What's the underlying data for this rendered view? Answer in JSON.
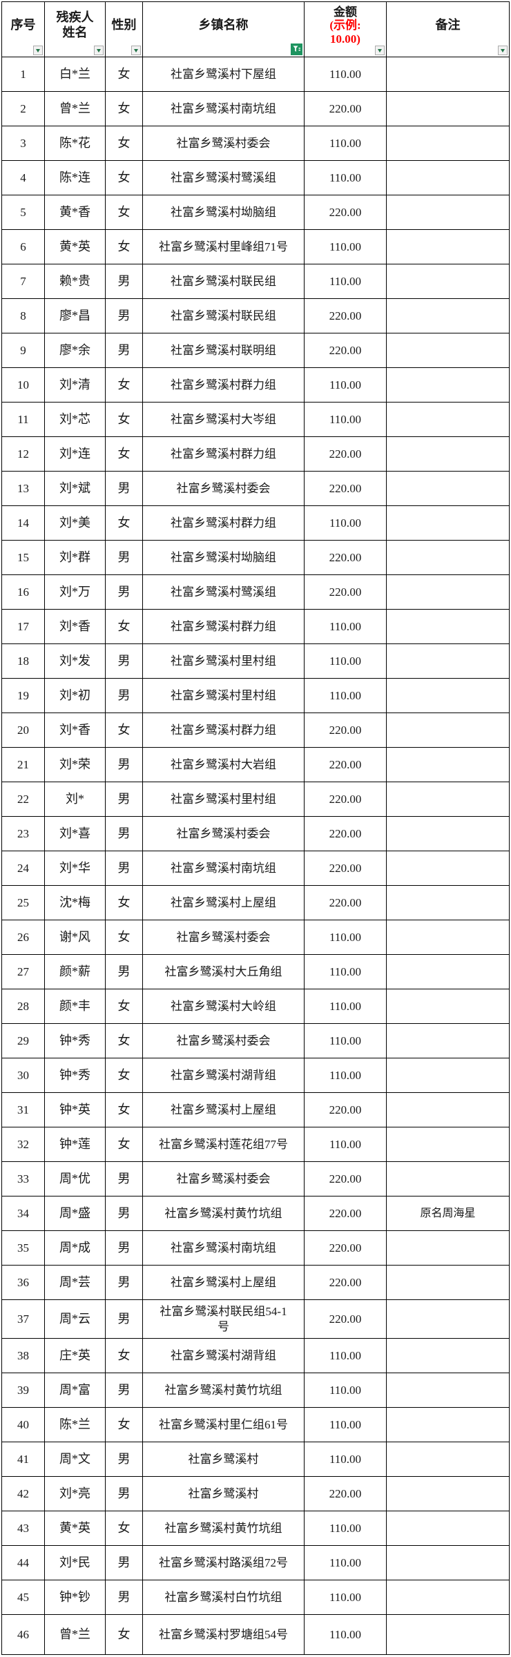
{
  "header": {
    "col_no": "序号",
    "col_name": "残疾人\n姓名",
    "col_gender": "性别",
    "col_township": "乡镇名称",
    "col_amount_title": "金额",
    "col_amount_note": "(示例:\n10.00)",
    "col_remark": "备注",
    "filter_dropdown_icon": "chevron-down-icon",
    "active_filter_icon": "funnel-icon"
  },
  "colors": {
    "grid_border": "#000000",
    "amount_note_red": "#FF0000",
    "filter_arrow_green": "#217346",
    "active_filter_green": "#1E9460"
  },
  "rows": [
    {
      "no": "1",
      "name": "白*兰",
      "gender": "女",
      "township": "社富乡鹭溪村下屋组",
      "amount": "110.00",
      "remark": ""
    },
    {
      "no": "2",
      "name": "曾*兰",
      "gender": "女",
      "township": "社富乡鹭溪村南坑组",
      "amount": "220.00",
      "remark": ""
    },
    {
      "no": "3",
      "name": "陈*花",
      "gender": "女",
      "township": "社富乡鹭溪村委会",
      "amount": "110.00",
      "remark": ""
    },
    {
      "no": "4",
      "name": "陈*连",
      "gender": "女",
      "township": "社富乡鹭溪村鹭溪组",
      "amount": "110.00",
      "remark": ""
    },
    {
      "no": "5",
      "name": "黄*香",
      "gender": "女",
      "township": "社富乡鹭溪村坳脑组",
      "amount": "220.00",
      "remark": ""
    },
    {
      "no": "6",
      "name": "黄*英",
      "gender": "女",
      "township": "社富乡鹭溪村里峰组71号",
      "amount": "110.00",
      "remark": ""
    },
    {
      "no": "7",
      "name": "赖*贵",
      "gender": "男",
      "township": "社富乡鹭溪村联民组",
      "amount": "110.00",
      "remark": ""
    },
    {
      "no": "8",
      "name": "廖*昌",
      "gender": "男",
      "township": "社富乡鹭溪村联民组",
      "amount": "220.00",
      "remark": ""
    },
    {
      "no": "9",
      "name": "廖*余",
      "gender": "男",
      "township": "社富乡鹭溪村联明组",
      "amount": "220.00",
      "remark": ""
    },
    {
      "no": "10",
      "name": "刘*清",
      "gender": "女",
      "township": "社富乡鹭溪村群力组",
      "amount": "110.00",
      "remark": ""
    },
    {
      "no": "11",
      "name": "刘*芯",
      "gender": "女",
      "township": "社富乡鹭溪村大岑组",
      "amount": "110.00",
      "remark": ""
    },
    {
      "no": "12",
      "name": "刘*连",
      "gender": "女",
      "township": "社富乡鹭溪村群力组",
      "amount": "220.00",
      "remark": ""
    },
    {
      "no": "13",
      "name": "刘*斌",
      "gender": "男",
      "township": "社富乡鹭溪村委会",
      "amount": "220.00",
      "remark": ""
    },
    {
      "no": "14",
      "name": "刘*美",
      "gender": "女",
      "township": "社富乡鹭溪村群力组",
      "amount": "110.00",
      "remark": ""
    },
    {
      "no": "15",
      "name": "刘*群",
      "gender": "男",
      "township": "社富乡鹭溪村坳脑组",
      "amount": "220.00",
      "remark": ""
    },
    {
      "no": "16",
      "name": "刘*万",
      "gender": "男",
      "township": "社富乡鹭溪村鹭溪组",
      "amount": "220.00",
      "remark": ""
    },
    {
      "no": "17",
      "name": "刘*香",
      "gender": "女",
      "township": "社富乡鹭溪村群力组",
      "amount": "110.00",
      "remark": ""
    },
    {
      "no": "18",
      "name": "刘*发",
      "gender": "男",
      "township": "社富乡鹭溪村里村组",
      "amount": "110.00",
      "remark": ""
    },
    {
      "no": "19",
      "name": "刘*初",
      "gender": "男",
      "township": "社富乡鹭溪村里村组",
      "amount": "110.00",
      "remark": ""
    },
    {
      "no": "20",
      "name": "刘*香",
      "gender": "女",
      "township": "社富乡鹭溪村群力组",
      "amount": "220.00",
      "remark": ""
    },
    {
      "no": "21",
      "name": "刘*荣",
      "gender": "男",
      "township": "社富乡鹭溪村大岩组",
      "amount": "220.00",
      "remark": ""
    },
    {
      "no": "22",
      "name": "刘*",
      "gender": "男",
      "township": "社富乡鹭溪村里村组",
      "amount": "220.00",
      "remark": ""
    },
    {
      "no": "23",
      "name": "刘*喜",
      "gender": "男",
      "township": "社富乡鹭溪村委会",
      "amount": "220.00",
      "remark": ""
    },
    {
      "no": "24",
      "name": "刘*华",
      "gender": "男",
      "township": "社富乡鹭溪村南坑组",
      "amount": "220.00",
      "remark": ""
    },
    {
      "no": "25",
      "name": "沈*梅",
      "gender": "女",
      "township": "社富乡鹭溪村上屋组",
      "amount": "220.00",
      "remark": ""
    },
    {
      "no": "26",
      "name": "谢*风",
      "gender": "女",
      "township": "社富乡鹭溪村委会",
      "amount": "110.00",
      "remark": ""
    },
    {
      "no": "27",
      "name": "颜*薪",
      "gender": "男",
      "township": "社富乡鹭溪村大丘角组",
      "amount": "110.00",
      "remark": ""
    },
    {
      "no": "28",
      "name": "颜*丰",
      "gender": "女",
      "township": "社富乡鹭溪村大岭组",
      "amount": "110.00",
      "remark": ""
    },
    {
      "no": "29",
      "name": "钟*秀",
      "gender": "女",
      "township": "社富乡鹭溪村委会",
      "amount": "110.00",
      "remark": ""
    },
    {
      "no": "30",
      "name": "钟*秀",
      "gender": "女",
      "township": "社富乡鹭溪村湖背组",
      "amount": "110.00",
      "remark": ""
    },
    {
      "no": "31",
      "name": "钟*英",
      "gender": "女",
      "township": "社富乡鹭溪村上屋组",
      "amount": "220.00",
      "remark": ""
    },
    {
      "no": "32",
      "name": "钟*莲",
      "gender": "女",
      "township": "社富乡鹭溪村莲花组77号",
      "amount": "110.00",
      "remark": ""
    },
    {
      "no": "33",
      "name": "周*优",
      "gender": "男",
      "township": "社富乡鹭溪村委会",
      "amount": "220.00",
      "remark": ""
    },
    {
      "no": "34",
      "name": "周*盛",
      "gender": "男",
      "township": "社富乡鹭溪村黄竹坑组",
      "amount": "220.00",
      "remark": "原名周海星"
    },
    {
      "no": "35",
      "name": "周*成",
      "gender": "男",
      "township": "社富乡鹭溪村南坑组",
      "amount": "220.00",
      "remark": ""
    },
    {
      "no": "36",
      "name": "周*芸",
      "gender": "男",
      "township": "社富乡鹭溪村上屋组",
      "amount": "220.00",
      "remark": ""
    },
    {
      "no": "37",
      "name": "周*云",
      "gender": "男",
      "township": "社富乡鹭溪村联民组54-1\n号",
      "amount": "220.00",
      "remark": ""
    },
    {
      "no": "38",
      "name": "庄*英",
      "gender": "女",
      "township": "社富乡鹭溪村湖背组",
      "amount": "110.00",
      "remark": ""
    },
    {
      "no": "39",
      "name": "周*富",
      "gender": "男",
      "township": "社富乡鹭溪村黄竹坑组",
      "amount": "110.00",
      "remark": ""
    },
    {
      "no": "40",
      "name": "陈*兰",
      "gender": "女",
      "township": "社富乡鹭溪村里仁组61号",
      "amount": "110.00",
      "remark": ""
    },
    {
      "no": "41",
      "name": "周*文",
      "gender": "男",
      "township": "社富乡鹭溪村",
      "amount": "110.00",
      "remark": ""
    },
    {
      "no": "42",
      "name": "刘*亮",
      "gender": "男",
      "township": "社富乡鹭溪村",
      "amount": "220.00",
      "remark": ""
    },
    {
      "no": "43",
      "name": "黄*英",
      "gender": "女",
      "township": "社富乡鹭溪村黄竹坑组",
      "amount": "110.00",
      "remark": ""
    },
    {
      "no": "44",
      "name": "刘*民",
      "gender": "男",
      "township": "社富乡鹭溪村路溪组72号",
      "amount": "110.00",
      "remark": ""
    },
    {
      "no": "45",
      "name": "钟*钞",
      "gender": "男",
      "township": "社富乡鹭溪村白竹坑组",
      "amount": "110.00",
      "remark": ""
    },
    {
      "no": "46",
      "name": "曾*兰",
      "gender": "女",
      "township": "社富乡鹭溪村罗塘组54号",
      "amount": "110.00",
      "remark": ""
    }
  ]
}
